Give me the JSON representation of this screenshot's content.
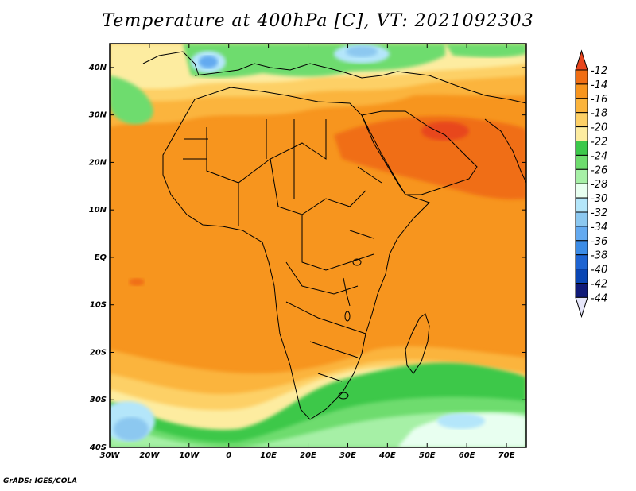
{
  "title": "Temperature at 400hPa [C], VT: 2021092303",
  "credit": "GrADS: IGES/COLA",
  "map": {
    "lon_range": [
      -30,
      75
    ],
    "lat_range": [
      -40,
      45
    ],
    "x_ticks": [
      "30W",
      "20W",
      "10W",
      "0",
      "10E",
      "20E",
      "30E",
      "40E",
      "50E",
      "60E",
      "70E"
    ],
    "y_ticks": [
      "40N",
      "30N",
      "20N",
      "10N",
      "EQ",
      "10S",
      "20S",
      "30S",
      "40S"
    ]
  },
  "colorbar": {
    "labels": [
      "-12",
      "-14",
      "-16",
      "-18",
      "-20",
      "-22",
      "-24",
      "-26",
      "-28",
      "-30",
      "-32",
      "-34",
      "-36",
      "-38",
      "-40",
      "-42",
      "-44"
    ],
    "colors": [
      "#e8461e",
      "#f06e14",
      "#f7951e",
      "#fbb43c",
      "#fdd066",
      "#fdeca0",
      "#3cc84a",
      "#6edc6e",
      "#a6f0a6",
      "#e8fff0",
      "#b4e6fa",
      "#8cc8f0",
      "#64aaf0",
      "#3c8ce6",
      "#1e64d2",
      "#0a46b4",
      "#101a78"
    ],
    "top_arrow_color": "#e8461e",
    "bottom_arrow_color": "#e6e6fa"
  }
}
